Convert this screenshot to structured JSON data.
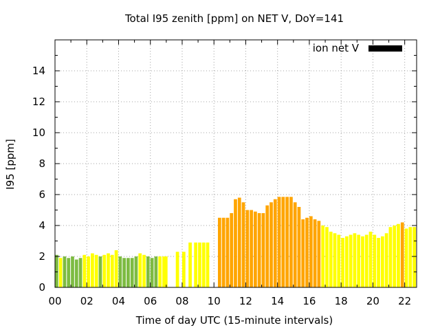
{
  "chart_data": {
    "type": "bar",
    "title": "Total I95 zenith [ppm] on NET V, DoY=141",
    "xlabel": "Time of day UTC (15-minute intervals)",
    "ylabel": "I95 [ppm]",
    "xlim": [
      0,
      22.75
    ],
    "ylim": [
      0,
      16
    ],
    "xticks": [
      {
        "value": 0,
        "label": "00"
      },
      {
        "value": 2,
        "label": "02"
      },
      {
        "value": 4,
        "label": "04"
      },
      {
        "value": 6,
        "label": "06"
      },
      {
        "value": 8,
        "label": "08"
      },
      {
        "value": 10,
        "label": "10"
      },
      {
        "value": 12,
        "label": "12"
      },
      {
        "value": 14,
        "label": "14"
      },
      {
        "value": 16,
        "label": "16"
      },
      {
        "value": 18,
        "label": "18"
      },
      {
        "value": 20,
        "label": "20"
      },
      {
        "value": 22,
        "label": "22"
      }
    ],
    "yticks": [
      0,
      2,
      4,
      6,
      8,
      10,
      12,
      14
    ],
    "grid": true,
    "legend": {
      "label": "ion net V",
      "color": "#000000",
      "placement": "top-right"
    },
    "colors": {
      "green": "#7dbb42",
      "yellow": "#ffff00",
      "orange": "#ffa500"
    },
    "series": [
      {
        "bars": [
          {
            "x": 0.0,
            "y": 2.1,
            "c": "green"
          },
          {
            "x": 0.25,
            "y": 1.9,
            "c": "yellow"
          },
          {
            "x": 0.5,
            "y": 2.0,
            "c": "green"
          },
          {
            "x": 0.75,
            "y": 1.9,
            "c": "green"
          },
          {
            "x": 1.0,
            "y": 2.0,
            "c": "green"
          },
          {
            "x": 1.25,
            "y": 1.8,
            "c": "green"
          },
          {
            "x": 1.5,
            "y": 1.9,
            "c": "green"
          },
          {
            "x": 1.75,
            "y": 2.1,
            "c": "yellow"
          },
          {
            "x": 2.0,
            "y": 2.0,
            "c": "yellow"
          },
          {
            "x": 2.25,
            "y": 2.2,
            "c": "yellow"
          },
          {
            "x": 2.5,
            "y": 2.1,
            "c": "yellow"
          },
          {
            "x": 2.75,
            "y": 2.0,
            "c": "green"
          },
          {
            "x": 3.0,
            "y": 2.1,
            "c": "yellow"
          },
          {
            "x": 3.25,
            "y": 2.2,
            "c": "yellow"
          },
          {
            "x": 3.5,
            "y": 2.1,
            "c": "yellow"
          },
          {
            "x": 3.75,
            "y": 2.4,
            "c": "yellow"
          },
          {
            "x": 4.0,
            "y": 2.0,
            "c": "green"
          },
          {
            "x": 4.25,
            "y": 1.9,
            "c": "green"
          },
          {
            "x": 4.5,
            "y": 1.9,
            "c": "green"
          },
          {
            "x": 4.75,
            "y": 1.9,
            "c": "green"
          },
          {
            "x": 5.0,
            "y": 2.0,
            "c": "green"
          },
          {
            "x": 5.25,
            "y": 2.2,
            "c": "yellow"
          },
          {
            "x": 5.5,
            "y": 2.1,
            "c": "yellow"
          },
          {
            "x": 5.75,
            "y": 2.0,
            "c": "green"
          },
          {
            "x": 6.0,
            "y": 1.9,
            "c": "green"
          },
          {
            "x": 6.25,
            "y": 2.0,
            "c": "green"
          },
          {
            "x": 6.5,
            "y": 2.0,
            "c": "yellow"
          },
          {
            "x": 6.75,
            "y": 2.0,
            "c": "yellow"
          },
          {
            "x": 6.875,
            "y": 2.0,
            "c": "yellow"
          },
          {
            "x": 7.6,
            "y": 2.3,
            "c": "yellow"
          },
          {
            "x": 8.0,
            "y": 2.3,
            "c": "yellow"
          },
          {
            "x": 8.4,
            "y": 2.9,
            "c": "yellow"
          },
          {
            "x": 8.75,
            "y": 2.9,
            "c": "yellow"
          },
          {
            "x": 9.0,
            "y": 2.9,
            "c": "yellow"
          },
          {
            "x": 9.25,
            "y": 2.9,
            "c": "yellow"
          },
          {
            "x": 9.5,
            "y": 2.9,
            "c": "yellow"
          },
          {
            "x": 10.25,
            "y": 4.5,
            "c": "orange"
          },
          {
            "x": 10.5,
            "y": 4.5,
            "c": "orange"
          },
          {
            "x": 10.75,
            "y": 4.5,
            "c": "orange"
          },
          {
            "x": 11.0,
            "y": 4.8,
            "c": "orange"
          },
          {
            "x": 11.25,
            "y": 5.7,
            "c": "orange"
          },
          {
            "x": 11.5,
            "y": 5.8,
            "c": "orange"
          },
          {
            "x": 11.75,
            "y": 5.5,
            "c": "orange"
          },
          {
            "x": 12.0,
            "y": 5.0,
            "c": "orange"
          },
          {
            "x": 12.25,
            "y": 5.0,
            "c": "orange"
          },
          {
            "x": 12.5,
            "y": 4.9,
            "c": "orange"
          },
          {
            "x": 12.75,
            "y": 4.8,
            "c": "orange"
          },
          {
            "x": 13.0,
            "y": 4.8,
            "c": "orange"
          },
          {
            "x": 13.25,
            "y": 5.3,
            "c": "orange"
          },
          {
            "x": 13.5,
            "y": 5.5,
            "c": "orange"
          },
          {
            "x": 13.75,
            "y": 5.7,
            "c": "orange"
          },
          {
            "x": 14.0,
            "y": 5.85,
            "c": "orange"
          },
          {
            "x": 14.25,
            "y": 5.85,
            "c": "orange"
          },
          {
            "x": 14.5,
            "y": 5.85,
            "c": "orange"
          },
          {
            "x": 14.75,
            "y": 5.85,
            "c": "orange"
          },
          {
            "x": 15.0,
            "y": 5.5,
            "c": "orange"
          },
          {
            "x": 15.25,
            "y": 5.2,
            "c": "orange"
          },
          {
            "x": 15.5,
            "y": 4.4,
            "c": "orange"
          },
          {
            "x": 15.75,
            "y": 4.5,
            "c": "orange"
          },
          {
            "x": 16.0,
            "y": 4.6,
            "c": "orange"
          },
          {
            "x": 16.25,
            "y": 4.4,
            "c": "orange"
          },
          {
            "x": 16.5,
            "y": 4.3,
            "c": "orange"
          },
          {
            "x": 16.75,
            "y": 4.0,
            "c": "yellow"
          },
          {
            "x": 17.0,
            "y": 3.9,
            "c": "yellow"
          },
          {
            "x": 17.25,
            "y": 3.6,
            "c": "yellow"
          },
          {
            "x": 17.5,
            "y": 3.5,
            "c": "yellow"
          },
          {
            "x": 17.75,
            "y": 3.4,
            "c": "yellow"
          },
          {
            "x": 18.0,
            "y": 3.2,
            "c": "yellow"
          },
          {
            "x": 18.25,
            "y": 3.3,
            "c": "yellow"
          },
          {
            "x": 18.5,
            "y": 3.4,
            "c": "yellow"
          },
          {
            "x": 18.75,
            "y": 3.5,
            "c": "yellow"
          },
          {
            "x": 19.0,
            "y": 3.4,
            "c": "yellow"
          },
          {
            "x": 19.25,
            "y": 3.3,
            "c": "yellow"
          },
          {
            "x": 19.5,
            "y": 3.4,
            "c": "yellow"
          },
          {
            "x": 19.75,
            "y": 3.6,
            "c": "yellow"
          },
          {
            "x": 20.0,
            "y": 3.4,
            "c": "yellow"
          },
          {
            "x": 20.25,
            "y": 3.2,
            "c": "yellow"
          },
          {
            "x": 20.5,
            "y": 3.3,
            "c": "yellow"
          },
          {
            "x": 20.75,
            "y": 3.5,
            "c": "yellow"
          },
          {
            "x": 21.0,
            "y": 3.9,
            "c": "yellow"
          },
          {
            "x": 21.25,
            "y": 4.0,
            "c": "yellow"
          },
          {
            "x": 21.5,
            "y": 4.1,
            "c": "yellow"
          },
          {
            "x": 21.75,
            "y": 4.2,
            "c": "orange"
          },
          {
            "x": 22.0,
            "y": 3.8,
            "c": "yellow"
          },
          {
            "x": 22.25,
            "y": 3.9,
            "c": "yellow"
          },
          {
            "x": 22.5,
            "y": 3.9,
            "c": "yellow"
          }
        ]
      }
    ]
  }
}
